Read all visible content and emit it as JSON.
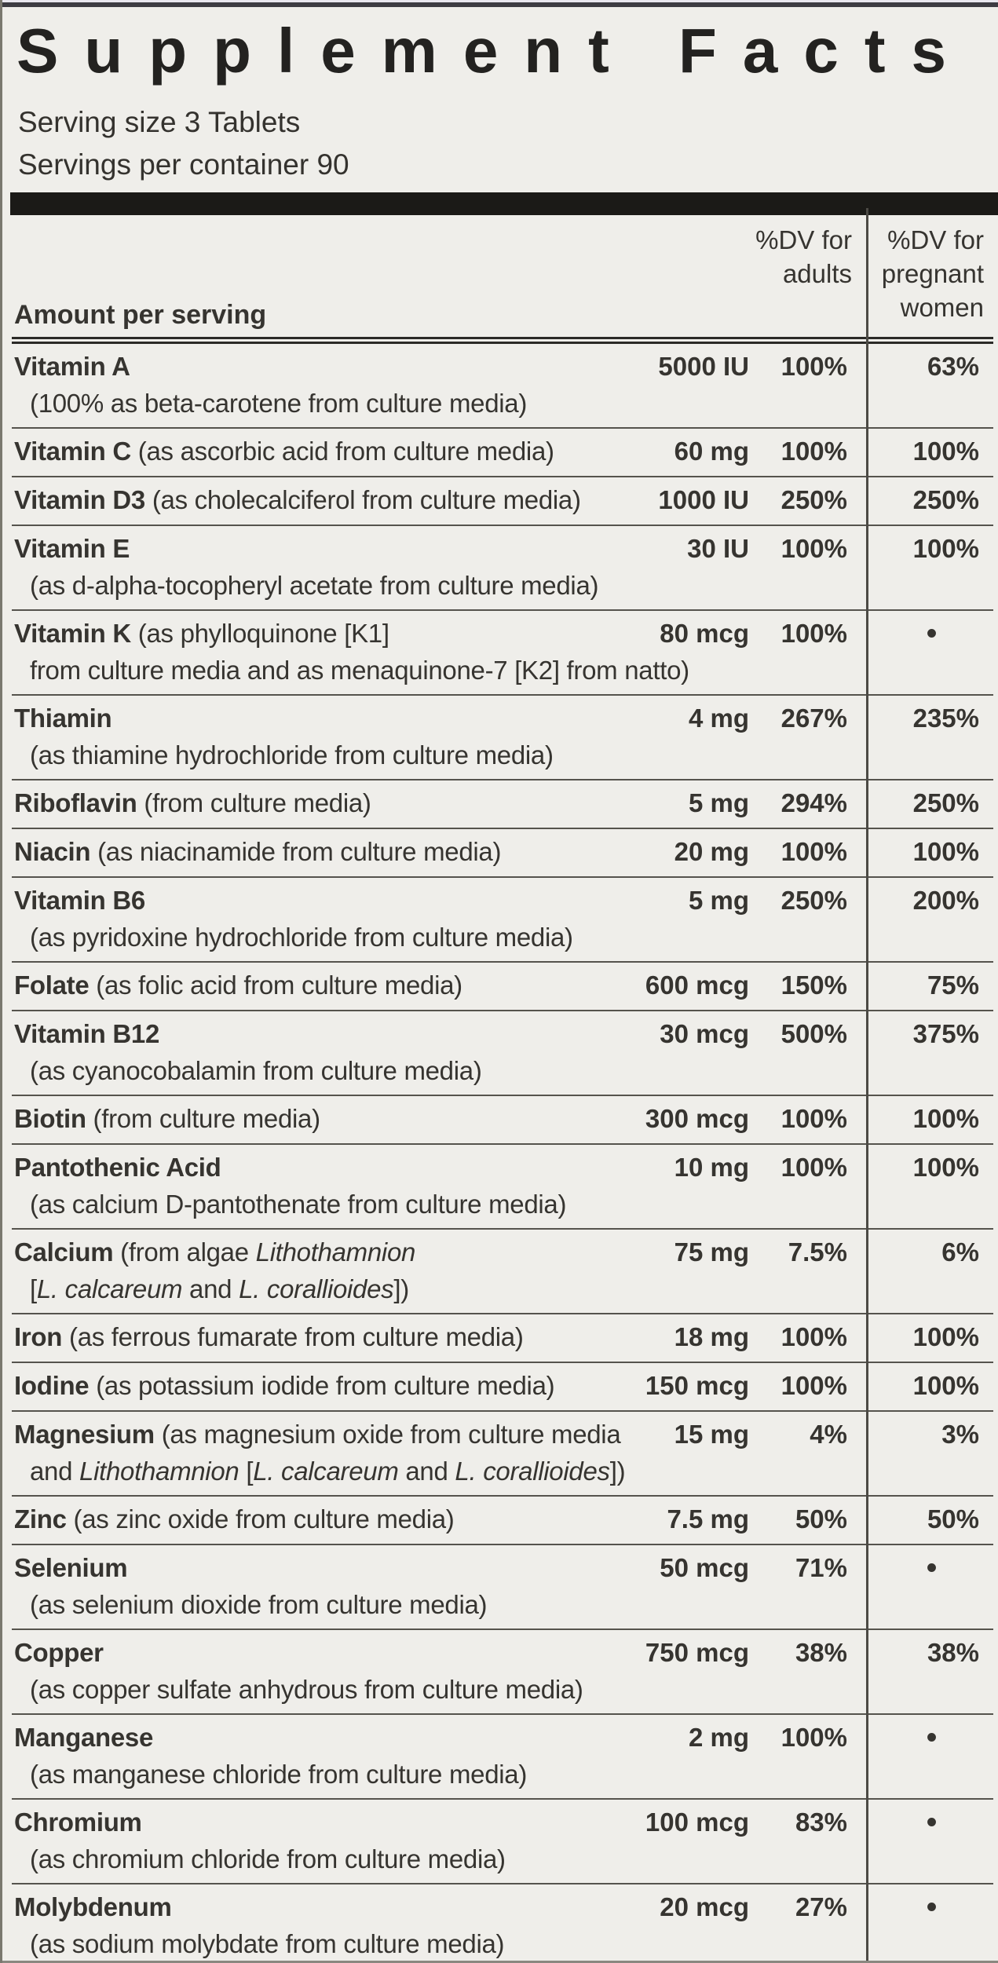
{
  "label": {
    "title": "Supplement Facts",
    "serving_size": "Serving size 3 Tablets",
    "servings_per_container": "Servings per container 90",
    "columns": {
      "amount_header": "Amount per serving",
      "dv_adults": [
        "%DV for",
        "adults"
      ],
      "dv_pregnant": [
        "%DV for",
        "pregnant",
        "women"
      ]
    },
    "bullet": "•",
    "rows": [
      {
        "name": [
          {
            "t": "Vitamin A",
            "s": "b"
          }
        ],
        "sub": [
          {
            "t": "(100% as beta-carotene from culture media)",
            "s": "r"
          }
        ],
        "amount": "5000 IU",
        "adults": "100%",
        "pregnant": "63%"
      },
      {
        "name": [
          {
            "t": "Vitamin C ",
            "s": "b"
          },
          {
            "t": "(as ascorbic acid from culture media)",
            "s": "r"
          }
        ],
        "amount": "60 mg",
        "adults": "100%",
        "pregnant": "100%"
      },
      {
        "name": [
          {
            "t": "Vitamin D3 ",
            "s": "b"
          },
          {
            "t": "(as cholecalciferol from culture media)",
            "s": "r"
          }
        ],
        "amount": "1000 IU",
        "adults": "250%",
        "pregnant": "250%"
      },
      {
        "name": [
          {
            "t": "Vitamin E",
            "s": "b"
          }
        ],
        "sub": [
          {
            "t": "(as d-alpha-tocopheryl acetate from culture media)",
            "s": "r"
          }
        ],
        "amount": "30 IU",
        "adults": "100%",
        "pregnant": "100%"
      },
      {
        "name": [
          {
            "t": "Vitamin K ",
            "s": "b"
          },
          {
            "t": "(as phylloquinone [K1]",
            "s": "r"
          }
        ],
        "sub": [
          {
            "t": "from culture media and as menaquinone-7 [K2] from natto)",
            "s": "r"
          }
        ],
        "amount": "80 mcg",
        "adults": "100%",
        "pregnant": "•"
      },
      {
        "name": [
          {
            "t": "Thiamin",
            "s": "b"
          }
        ],
        "sub": [
          {
            "t": "(as thiamine hydrochloride from culture media)",
            "s": "r"
          }
        ],
        "amount": "4 mg",
        "adults": "267%",
        "pregnant": "235%"
      },
      {
        "name": [
          {
            "t": "Riboflavin ",
            "s": "b"
          },
          {
            "t": "(from culture media)",
            "s": "r"
          }
        ],
        "amount": "5 mg",
        "adults": "294%",
        "pregnant": "250%"
      },
      {
        "name": [
          {
            "t": "Niacin ",
            "s": "b"
          },
          {
            "t": "(as niacinamide from culture media)",
            "s": "r"
          }
        ],
        "amount": "20 mg",
        "adults": "100%",
        "pregnant": "100%"
      },
      {
        "name": [
          {
            "t": "Vitamin B6",
            "s": "b"
          }
        ],
        "sub": [
          {
            "t": "(as pyridoxine hydrochloride from culture media)",
            "s": "r"
          }
        ],
        "amount": "5 mg",
        "adults": "250%",
        "pregnant": "200%"
      },
      {
        "name": [
          {
            "t": "Folate ",
            "s": "b"
          },
          {
            "t": "(as folic acid from culture media)",
            "s": "r"
          }
        ],
        "amount": "600 mcg",
        "adults": "150%",
        "pregnant": "75%"
      },
      {
        "name": [
          {
            "t": "Vitamin B12",
            "s": "b"
          }
        ],
        "sub": [
          {
            "t": "(as cyanocobalamin from culture media)",
            "s": "r"
          }
        ],
        "amount": "30 mcg",
        "adults": "500%",
        "pregnant": "375%"
      },
      {
        "name": [
          {
            "t": "Biotin ",
            "s": "b"
          },
          {
            "t": "(from culture media)",
            "s": "r"
          }
        ],
        "amount": "300 mcg",
        "adults": "100%",
        "pregnant": "100%"
      },
      {
        "name": [
          {
            "t": "Pantothenic Acid",
            "s": "b"
          }
        ],
        "sub": [
          {
            "t": "(as calcium D-pantothenate from culture media)",
            "s": "r"
          }
        ],
        "amount": "10 mg",
        "adults": "100%",
        "pregnant": "100%"
      },
      {
        "name": [
          {
            "t": "Calcium ",
            "s": "b"
          },
          {
            "t": "(from algae ",
            "s": "r"
          },
          {
            "t": "Lithothamnion",
            "s": "i"
          }
        ],
        "sub": [
          {
            "t": "[",
            "s": "r"
          },
          {
            "t": "L. calcareum",
            "s": "i"
          },
          {
            "t": " and ",
            "s": "r"
          },
          {
            "t": "L. corallioides",
            "s": "i"
          },
          {
            "t": "])",
            "s": "r"
          }
        ],
        "amount": "75 mg",
        "adults": "7.5%",
        "pregnant": "6%"
      },
      {
        "name": [
          {
            "t": "Iron ",
            "s": "b"
          },
          {
            "t": "(as ferrous fumarate from culture media)",
            "s": "r"
          }
        ],
        "amount": "18 mg",
        "adults": "100%",
        "pregnant": "100%"
      },
      {
        "name": [
          {
            "t": "Iodine ",
            "s": "b"
          },
          {
            "t": "(as potassium iodide from culture media)",
            "s": "r"
          }
        ],
        "amount": "150 mcg",
        "adults": "100%",
        "pregnant": "100%"
      },
      {
        "name": [
          {
            "t": "Magnesium ",
            "s": "b"
          },
          {
            "t": "(as magnesium oxide from culture media",
            "s": "r"
          }
        ],
        "sub": [
          {
            "t": "and ",
            "s": "r"
          },
          {
            "t": "Lithothamnion",
            "s": "i"
          },
          {
            "t": " [",
            "s": "r"
          },
          {
            "t": "L. calcareum",
            "s": "i"
          },
          {
            "t": " and ",
            "s": "r"
          },
          {
            "t": "L. corallioides",
            "s": "i"
          },
          {
            "t": "])",
            "s": "r"
          }
        ],
        "amount": "15 mg",
        "adults": "4%",
        "pregnant": "3%"
      },
      {
        "name": [
          {
            "t": "Zinc ",
            "s": "b"
          },
          {
            "t": "(as zinc oxide from culture media)",
            "s": "r"
          }
        ],
        "amount": "7.5 mg",
        "adults": "50%",
        "pregnant": "50%"
      },
      {
        "name": [
          {
            "t": "Selenium",
            "s": "b"
          }
        ],
        "sub": [
          {
            "t": "(as selenium dioxide from culture media)",
            "s": "r"
          }
        ],
        "amount": "50 mcg",
        "adults": "71%",
        "pregnant": "•"
      },
      {
        "name": [
          {
            "t": "Copper",
            "s": "b"
          }
        ],
        "sub": [
          {
            "t": "(as copper sulfate anhydrous from culture media)",
            "s": "r"
          }
        ],
        "amount": "750 mcg",
        "adults": "38%",
        "pregnant": "38%"
      },
      {
        "name": [
          {
            "t": "Manganese",
            "s": "b"
          }
        ],
        "sub": [
          {
            "t": "(as manganese chloride from culture media)",
            "s": "r"
          }
        ],
        "amount": "2 mg",
        "adults": "100%",
        "pregnant": "•"
      },
      {
        "name": [
          {
            "t": "Chromium",
            "s": "b"
          }
        ],
        "sub": [
          {
            "t": "(as chromium chloride from culture media)",
            "s": "r"
          }
        ],
        "amount": "100 mcg",
        "adults": "83%",
        "pregnant": "•"
      },
      {
        "name": [
          {
            "t": "Molybdenum",
            "s": "b"
          }
        ],
        "sub": [
          {
            "t": "(as sodium molybdate from culture media)",
            "s": "r"
          }
        ],
        "amount": "20 mcg",
        "adults": "27%",
        "pregnant": "•"
      }
    ]
  }
}
